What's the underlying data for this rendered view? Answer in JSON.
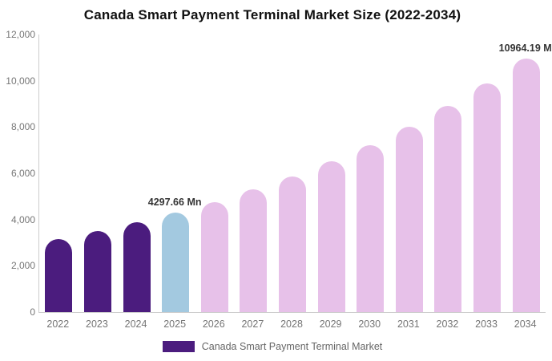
{
  "title": "Canada Smart Payment Terminal Market Size (2022-2034)",
  "legend": {
    "label": "Canada Smart Payment Terminal Market",
    "swatch_color": "#4B1C7E"
  },
  "chart_data": {
    "type": "bar",
    "title": "Canada Smart Payment Terminal Market Size (2022-2034)",
    "xlabel": "",
    "ylabel": "",
    "unit": "Mn",
    "categories": [
      "2022",
      "2023",
      "2024",
      "2025",
      "2026",
      "2027",
      "2028",
      "2029",
      "2030",
      "2031",
      "2032",
      "2033",
      "2034"
    ],
    "values": [
      3145,
      3490,
      3873,
      4297.66,
      4769,
      5292,
      5873,
      6517,
      7231,
      8024,
      8905,
      9881,
      10964.19
    ],
    "bar_colors": [
      "#4B1C7E",
      "#4B1C7E",
      "#4B1C7E",
      "#A3C9E0",
      "#E7C1E9",
      "#E7C1E9",
      "#E7C1E9",
      "#E7C1E9",
      "#E7C1E9",
      "#E7C1E9",
      "#E7C1E9",
      "#E7C1E9",
      "#E7C1E9"
    ],
    "ylim": [
      0,
      12000
    ],
    "yticks": [
      {
        "value": 0,
        "label": "0"
      },
      {
        "value": 2000,
        "label": "2,000"
      },
      {
        "value": 4000,
        "label": "4,000"
      },
      {
        "value": 6000,
        "label": "6,000"
      },
      {
        "value": 8000,
        "label": "8,000"
      },
      {
        "value": 10000,
        "label": "10,000"
      },
      {
        "value": 12000,
        "label": "12,000"
      }
    ],
    "annotations": [
      {
        "category": "2025",
        "text": "4297.66 Mn"
      },
      {
        "category": "2034",
        "text": "10964.19 M"
      }
    ],
    "grid": false,
    "legend_position": "bottom",
    "colors": {
      "historical_bar": "#4B1C7E",
      "current_year_bar": "#A3C9E0",
      "forecast_bar": "#E7C1E9",
      "axis_line": "#cccccc",
      "tick_label": "#767676",
      "annotation_text": "#333333",
      "title_text": "#111111"
    }
  }
}
